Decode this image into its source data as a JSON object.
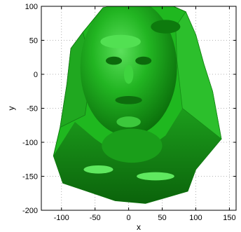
{
  "chart_data": {
    "type": "scatter",
    "title": "",
    "xlabel": "x",
    "ylabel": "y",
    "xlim": [
      -130,
      160
    ],
    "ylim": [
      -200,
      100
    ],
    "x_ticks": [
      -100,
      -50,
      0,
      50,
      100,
      150
    ],
    "y_ticks": [
      100,
      50,
      0,
      -50,
      -100,
      -150,
      -200
    ],
    "grid": "dotted",
    "surface": {
      "description_free": true,
      "color": "#1fb81f",
      "shade_color": "#0a7a0a",
      "highlight_color": "#7cf07c",
      "outline": [
        [
          -38,
          98
        ],
        [
          -10,
          102
        ],
        [
          20,
          102
        ],
        [
          62,
          102
        ],
        [
          85,
          92
        ],
        [
          100,
          58
        ],
        [
          112,
          15
        ],
        [
          125,
          -25
        ],
        [
          138,
          -95
        ],
        [
          100,
          -140
        ],
        [
          88,
          -172
        ],
        [
          60,
          -180
        ],
        [
          25,
          -190
        ],
        [
          -20,
          -186
        ],
        [
          -62,
          -172
        ],
        [
          -98,
          -160
        ],
        [
          -112,
          -120
        ],
        [
          -102,
          -78
        ],
        [
          -92,
          -15
        ],
        [
          -86,
          38
        ],
        [
          -68,
          62
        ]
      ]
    }
  }
}
